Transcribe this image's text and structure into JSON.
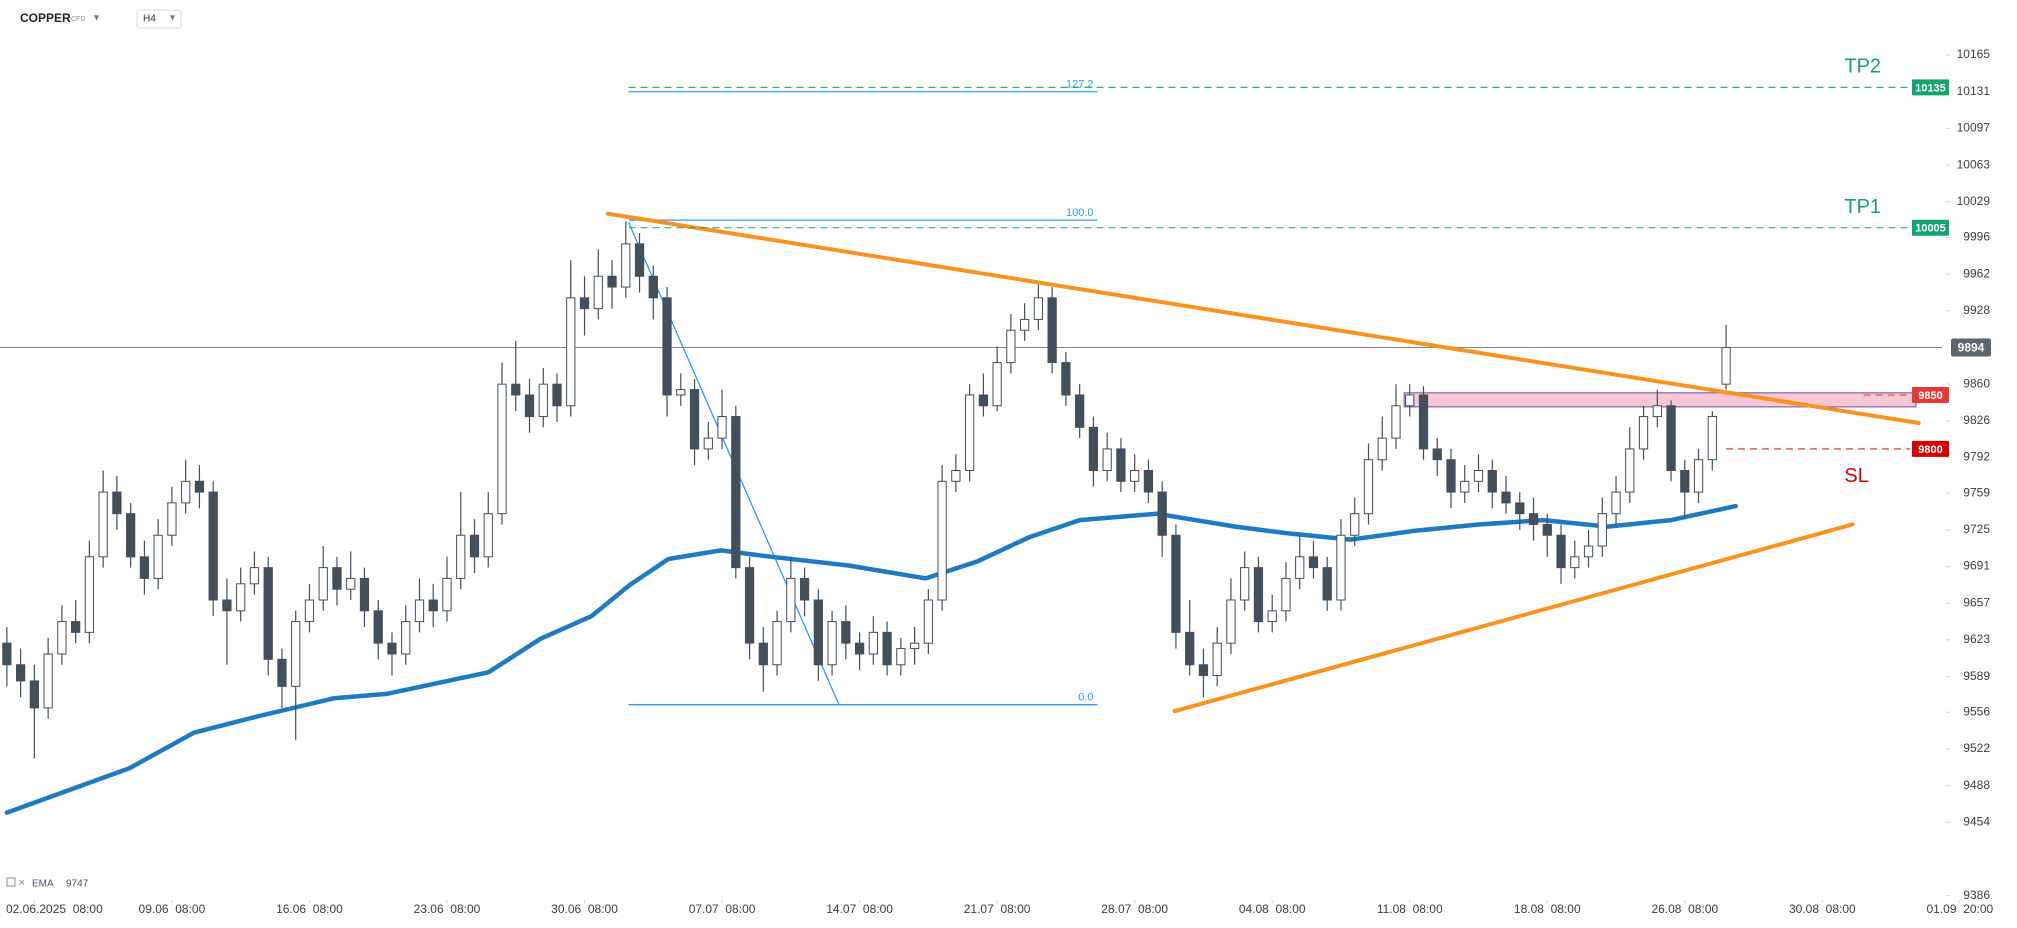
{
  "chart_data": {
    "type": "candlestick",
    "title": "COPPER",
    "subtitle": "CFD",
    "timeframe": "H4",
    "xlim": [
      -0.5,
      140.7
    ],
    "ylim": [
      9382,
      10216
    ],
    "xticks": [
      {
        "value": 2,
        "label": "02.06.2025  08:00"
      },
      {
        "value": 12,
        "label": "09.06  08:00"
      },
      {
        "value": 22,
        "label": "16.06  08:00"
      },
      {
        "value": 32,
        "label": "23.06  08:00"
      },
      {
        "value": 42,
        "label": "30.06  08:00"
      },
      {
        "value": 52,
        "label": "07.07  08:00"
      },
      {
        "value": 62,
        "label": "14.07  08:00"
      },
      {
        "value": 72,
        "label": "21.07  08:00"
      },
      {
        "value": 82,
        "label": "28.07  08:00"
      },
      {
        "value": 92,
        "label": "04.08  08:00"
      },
      {
        "value": 102,
        "label": "11.08  08:00"
      },
      {
        "value": 112,
        "label": "18.08  08:00"
      },
      {
        "value": 122,
        "label": "26.08  08:00"
      },
      {
        "value": 132,
        "label": "30.08  08:00"
      },
      {
        "value": 142,
        "label": "01.09  20:00"
      }
    ],
    "yticks": [
      10165,
      10131,
      10097,
      10063,
      10029,
      9996,
      9962,
      9928,
      9860,
      9826,
      9792,
      9759,
      9725,
      9691,
      9657,
      9623,
      9589,
      9556,
      9522,
      9488,
      9454,
      9386
    ],
    "colors": {
      "up": "#ffffff",
      "down": "#434f5a",
      "wick": "#434f5a"
    },
    "candles": [
      [
        9620,
        9635,
        9580,
        9600
      ],
      [
        9600,
        9615,
        9570,
        9585
      ],
      [
        9585,
        9600,
        9513,
        9560
      ],
      [
        9560,
        9625,
        9550,
        9610
      ],
      [
        9610,
        9655,
        9600,
        9640
      ],
      [
        9640,
        9660,
        9620,
        9630
      ],
      [
        9630,
        9715,
        9620,
        9700
      ],
      [
        9700,
        9780,
        9690,
        9760
      ],
      [
        9760,
        9775,
        9725,
        9740
      ],
      [
        9740,
        9750,
        9690,
        9700
      ],
      [
        9700,
        9715,
        9665,
        9680
      ],
      [
        9680,
        9735,
        9670,
        9720
      ],
      [
        9720,
        9765,
        9710,
        9750
      ],
      [
        9750,
        9790,
        9740,
        9770
      ],
      [
        9770,
        9785,
        9745,
        9760
      ],
      [
        9760,
        9770,
        9645,
        9660
      ],
      [
        9660,
        9680,
        9600,
        9650
      ],
      [
        9650,
        9690,
        9640,
        9675
      ],
      [
        9675,
        9705,
        9665,
        9690
      ],
      [
        9690,
        9700,
        9590,
        9605
      ],
      [
        9605,
        9615,
        9560,
        9580
      ],
      [
        9580,
        9650,
        9530,
        9640
      ],
      [
        9640,
        9675,
        9630,
        9660
      ],
      [
        9660,
        9710,
        9650,
        9690
      ],
      [
        9690,
        9700,
        9655,
        9670
      ],
      [
        9670,
        9705,
        9660,
        9680
      ],
      [
        9680,
        9690,
        9635,
        9650
      ],
      [
        9650,
        9660,
        9605,
        9620
      ],
      [
        9620,
        9630,
        9590,
        9610
      ],
      [
        9610,
        9655,
        9600,
        9640
      ],
      [
        9640,
        9680,
        9630,
        9660
      ],
      [
        9660,
        9675,
        9635,
        9650
      ],
      [
        9650,
        9700,
        9640,
        9680
      ],
      [
        9680,
        9760,
        9670,
        9720
      ],
      [
        9720,
        9735,
        9685,
        9700
      ],
      [
        9700,
        9760,
        9690,
        9740
      ],
      [
        9740,
        9880,
        9730,
        9860
      ],
      [
        9860,
        9900,
        9835,
        9850
      ],
      [
        9850,
        9865,
        9815,
        9830
      ],
      [
        9830,
        9875,
        9820,
        9860
      ],
      [
        9860,
        9870,
        9825,
        9840
      ],
      [
        9840,
        9975,
        9830,
        9940
      ],
      [
        9940,
        9960,
        9905,
        9930
      ],
      [
        9930,
        9985,
        9920,
        9960
      ],
      [
        9960,
        9975,
        9930,
        9950
      ],
      [
        9950,
        10011,
        9940,
        9990
      ],
      [
        9990,
        10000,
        9945,
        9960
      ],
      [
        9960,
        9970,
        9920,
        9940
      ],
      [
        9940,
        9950,
        9830,
        9850
      ],
      [
        9850,
        9870,
        9840,
        9855
      ],
      [
        9855,
        9865,
        9785,
        9800
      ],
      [
        9800,
        9825,
        9790,
        9810
      ],
      [
        9810,
        9855,
        9800,
        9830
      ],
      [
        9830,
        9840,
        9680,
        9690
      ],
      [
        9690,
        9700,
        9605,
        9620
      ],
      [
        9620,
        9635,
        9575,
        9600
      ],
      [
        9600,
        9650,
        9590,
        9640
      ],
      [
        9640,
        9700,
        9630,
        9680
      ],
      [
        9680,
        9690,
        9645,
        9660
      ],
      [
        9660,
        9670,
        9585,
        9600
      ],
      [
        9600,
        9650,
        9590,
        9640
      ],
      [
        9640,
        9655,
        9605,
        9620
      ],
      [
        9620,
        9630,
        9595,
        9610
      ],
      [
        9610,
        9645,
        9600,
        9630
      ],
      [
        9630,
        9640,
        9590,
        9600
      ],
      [
        9600,
        9625,
        9590,
        9615
      ],
      [
        9615,
        9635,
        9600,
        9620
      ],
      [
        9620,
        9670,
        9610,
        9660
      ],
      [
        9660,
        9785,
        9650,
        9770
      ],
      [
        9770,
        9795,
        9760,
        9780
      ],
      [
        9780,
        9860,
        9770,
        9850
      ],
      [
        9850,
        9870,
        9830,
        9840
      ],
      [
        9840,
        9895,
        9835,
        9880
      ],
      [
        9880,
        9925,
        9870,
        9910
      ],
      [
        9910,
        9935,
        9900,
        9920
      ],
      [
        9920,
        9955,
        9910,
        9940
      ],
      [
        9940,
        9950,
        9870,
        9880
      ],
      [
        9880,
        9890,
        9840,
        9850
      ],
      [
        9850,
        9860,
        9810,
        9820
      ],
      [
        9820,
        9830,
        9765,
        9780
      ],
      [
        9780,
        9815,
        9770,
        9800
      ],
      [
        9800,
        9810,
        9760,
        9770
      ],
      [
        9770,
        9795,
        9760,
        9780
      ],
      [
        9780,
        9790,
        9750,
        9760
      ],
      [
        9760,
        9770,
        9700,
        9720
      ],
      [
        9720,
        9730,
        9615,
        9630
      ],
      [
        9630,
        9660,
        9590,
        9600
      ],
      [
        9600,
        9615,
        9570,
        9590
      ],
      [
        9590,
        9635,
        9580,
        9620
      ],
      [
        9620,
        9680,
        9610,
        9660
      ],
      [
        9660,
        9705,
        9650,
        9690
      ],
      [
        9690,
        9700,
        9630,
        9640
      ],
      [
        9640,
        9665,
        9630,
        9650
      ],
      [
        9650,
        9695,
        9640,
        9680
      ],
      [
        9680,
        9720,
        9670,
        9700
      ],
      [
        9700,
        9715,
        9680,
        9690
      ],
      [
        9690,
        9700,
        9650,
        9660
      ],
      [
        9660,
        9735,
        9650,
        9720
      ],
      [
        9720,
        9755,
        9710,
        9740
      ],
      [
        9740,
        9805,
        9730,
        9790
      ],
      [
        9790,
        9830,
        9780,
        9810
      ],
      [
        9810,
        9860,
        9800,
        9840
      ],
      [
        9840,
        9860,
        9830,
        9850
      ],
      [
        9850,
        9858,
        9790,
        9800
      ],
      [
        9800,
        9810,
        9775,
        9790
      ],
      [
        9790,
        9800,
        9745,
        9760
      ],
      [
        9760,
        9785,
        9750,
        9770
      ],
      [
        9770,
        9795,
        9760,
        9780
      ],
      [
        9780,
        9790,
        9745,
        9760
      ],
      [
        9760,
        9775,
        9740,
        9750
      ],
      [
        9750,
        9760,
        9725,
        9740
      ],
      [
        9740,
        9755,
        9715,
        9730
      ],
      [
        9730,
        9740,
        9700,
        9720
      ],
      [
        9720,
        9730,
        9675,
        9690
      ],
      [
        9690,
        9715,
        9680,
        9700
      ],
      [
        9700,
        9725,
        9690,
        9710
      ],
      [
        9710,
        9755,
        9700,
        9740
      ],
      [
        9740,
        9775,
        9730,
        9760
      ],
      [
        9760,
        9820,
        9750,
        9800
      ],
      [
        9800,
        9840,
        9790,
        9830
      ],
      [
        9830,
        9855,
        9820,
        9840
      ],
      [
        9840,
        9845,
        9770,
        9780
      ],
      [
        9780,
        9790,
        9735,
        9760
      ],
      [
        9760,
        9800,
        9750,
        9790
      ],
      [
        9790,
        9835,
        9780,
        9830
      ],
      [
        9860,
        9915,
        9855,
        9894
      ]
    ],
    "ema": {
      "name": "EMA",
      "color": "#1f7bbf",
      "x": [
        0,
        8.9,
        13.6,
        18.2,
        23.8,
        27.6,
        35,
        38.8,
        42.5,
        45.3,
        48.1,
        51.9,
        55.6,
        61.2,
        66.8,
        70.6,
        74.3,
        78,
        83.6,
        89.3,
        93,
        97.7,
        102.3,
        107,
        111.7,
        116.4,
        121,
        125.7
      ],
      "values": [
        9463,
        9504,
        9537,
        9552,
        9569,
        9573,
        9593,
        9624,
        9645,
        9674,
        9698,
        9706,
        9700,
        9692,
        9680,
        9696,
        9718,
        9734,
        9740,
        9728,
        9722,
        9716,
        9724,
        9730,
        9734,
        9728,
        9734,
        9747
      ]
    },
    "last_price": {
      "value": 9894,
      "color": "#5d6670"
    },
    "fib": {
      "color": "#2a9df4",
      "x": [
        45.2,
        79.3
      ],
      "levels": [
        {
          "label": "127.2",
          "value": 10131
        },
        {
          "label": "100.0",
          "value": 10012
        },
        {
          "label": "0.0",
          "value": 9563
        }
      ],
      "trend_x": [
        45.2,
        60.5
      ],
      "trend_values": [
        10010,
        9563
      ]
    },
    "trendlines": [
      {
        "color": "#f7931e",
        "x": [
          43.7,
          139
        ],
        "values": [
          10018,
          9824
        ]
      },
      {
        "color": "#f7931e",
        "x": [
          84.9,
          134.2
        ],
        "values": [
          9557,
          9730
        ]
      }
    ],
    "zone": {
      "x": [
        101.6,
        138.8
      ],
      "values": [
        9839,
        9852
      ],
      "fill": "#f9c9d3",
      "stroke": "#8e6bbf"
    },
    "levels": [
      {
        "name": "TP2",
        "value": 10135,
        "color": "#13a36e",
        "x": [
          45.2,
          138.4
        ]
      },
      {
        "name": "TP1",
        "value": 10005,
        "color": "#13a36e",
        "x": [
          45.2,
          138.4
        ]
      },
      {
        "value": 9850,
        "color": "#e53935",
        "x": [
          135,
          138.4
        ]
      },
      {
        "name": "SL",
        "value": 9800,
        "color": "#d50000",
        "x": [
          125,
          138.4
        ]
      }
    ]
  }
}
